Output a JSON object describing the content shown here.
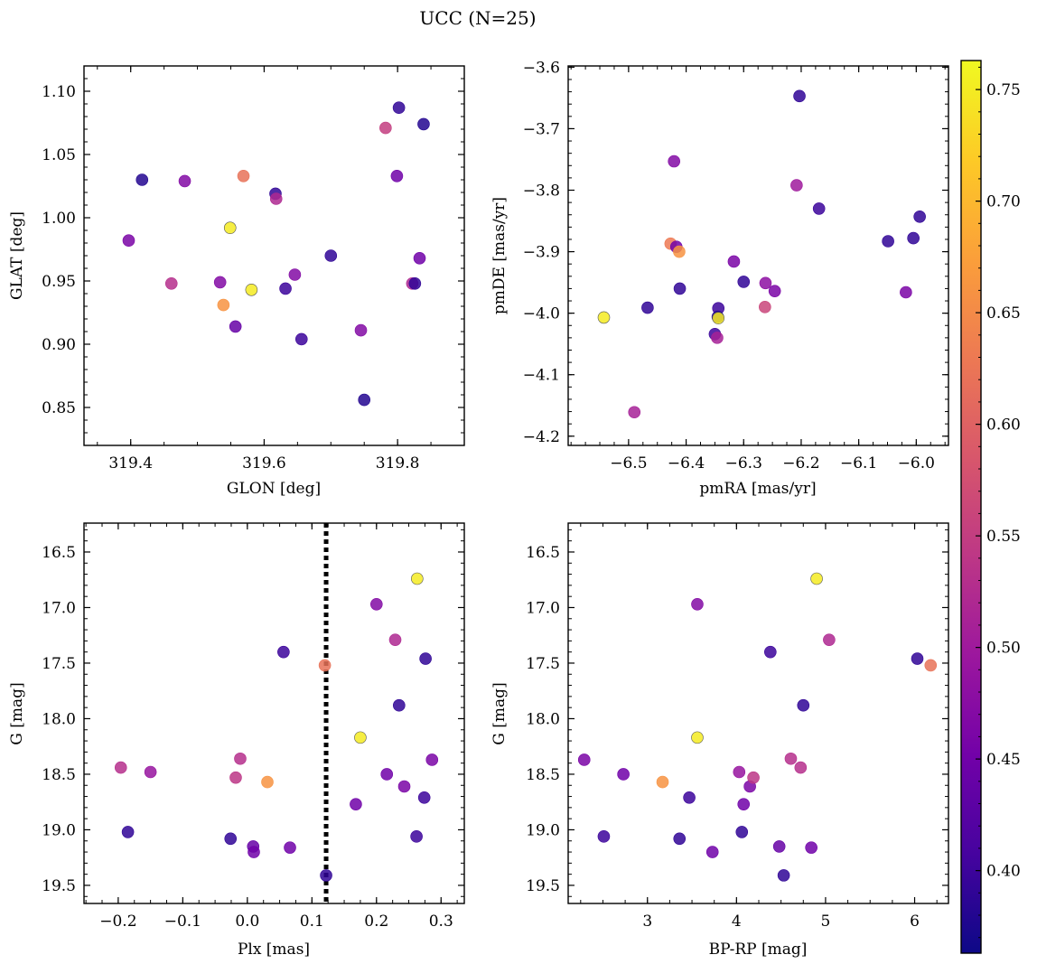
{
  "title": "UCC (N=25)",
  "colorbar": {
    "range": [
      0.363,
      0.763
    ],
    "ticks": [
      "0.40",
      "0.45",
      "0.50",
      "0.55",
      "0.60",
      "0.65",
      "0.70",
      "0.75"
    ],
    "tick_values": [
      0.4,
      0.45,
      0.5,
      0.55,
      0.6,
      0.65,
      0.7,
      0.75
    ],
    "cmap": [
      "#0d0887",
      "#46039f",
      "#7201a8",
      "#9c179e",
      "#bd3786",
      "#d8576b",
      "#ed7953",
      "#fb9f3a",
      "#fdca26",
      "#f0f921"
    ]
  },
  "chart_data": [
    {
      "type": "scatter",
      "name": "glon-glat",
      "xlabel": "GLON [deg]",
      "ylabel": "GLAT [deg]",
      "xlim": [
        319.33,
        319.9
      ],
      "ylim": [
        0.82,
        1.12
      ],
      "xticks": [
        319.4,
        319.6,
        319.8
      ],
      "xtick_labels": [
        "319.4",
        "319.6",
        "319.8"
      ],
      "yticks": [
        0.85,
        0.9,
        0.95,
        1.0,
        1.05,
        1.1
      ],
      "ytick_labels": [
        "0.85",
        "0.90",
        "0.95",
        "1.00",
        "1.05",
        "1.10"
      ],
      "points": [
        {
          "x": 319.397,
          "y": 0.982,
          "c": 0.46
        },
        {
          "x": 319.417,
          "y": 1.03,
          "c": 0.38
        },
        {
          "x": 319.461,
          "y": 0.948,
          "c": 0.53
        },
        {
          "x": 319.481,
          "y": 1.029,
          "c": 0.47
        },
        {
          "x": 319.534,
          "y": 0.949,
          "c": 0.47
        },
        {
          "x": 319.539,
          "y": 0.931,
          "c": 0.66
        },
        {
          "x": 319.549,
          "y": 0.992,
          "c": 0.75
        },
        {
          "x": 319.557,
          "y": 0.914,
          "c": 0.44
        },
        {
          "x": 319.569,
          "y": 1.033,
          "c": 0.62
        },
        {
          "x": 319.581,
          "y": 0.943,
          "c": 0.75
        },
        {
          "x": 319.617,
          "y": 1.019,
          "c": 0.39
        },
        {
          "x": 319.618,
          "y": 1.015,
          "c": 0.52
        },
        {
          "x": 319.632,
          "y": 0.944,
          "c": 0.4
        },
        {
          "x": 319.646,
          "y": 0.955,
          "c": 0.47
        },
        {
          "x": 319.656,
          "y": 0.904,
          "c": 0.4
        },
        {
          "x": 319.7,
          "y": 0.97,
          "c": 0.39
        },
        {
          "x": 319.745,
          "y": 0.911,
          "c": 0.47
        },
        {
          "x": 319.75,
          "y": 0.856,
          "c": 0.38
        },
        {
          "x": 319.782,
          "y": 1.071,
          "c": 0.55
        },
        {
          "x": 319.799,
          "y": 1.033,
          "c": 0.45
        },
        {
          "x": 319.802,
          "y": 1.087,
          "c": 0.39
        },
        {
          "x": 319.822,
          "y": 0.948,
          "c": 0.52
        },
        {
          "x": 319.826,
          "y": 0.948,
          "c": 0.39
        },
        {
          "x": 319.833,
          "y": 0.968,
          "c": 0.45
        },
        {
          "x": 319.839,
          "y": 1.074,
          "c": 0.38
        }
      ]
    },
    {
      "type": "scatter",
      "name": "pmra-pmde",
      "xlabel": "pmRA [mas/yr]",
      "ylabel": "pmDE [mas/yr]",
      "xlim": [
        -6.605,
        -5.944
      ],
      "ylim": [
        -4.215,
        -3.598
      ],
      "xticks": [
        -6.5,
        -6.4,
        -6.3,
        -6.2,
        -6.1,
        -6.0
      ],
      "xtick_labels": [
        "−6.5",
        "−6.4",
        "−6.3",
        "−6.2",
        "−6.1",
        "−6.0"
      ],
      "yticks": [
        -4.2,
        -4.1,
        -4.0,
        -3.9,
        -3.8,
        -3.7,
        -3.6
      ],
      "ytick_labels": [
        "−4.2",
        "−4.1",
        "−4.0",
        "−3.9",
        "−3.8",
        "−3.7",
        "−3.6"
      ],
      "points": [
        {
          "x": -6.543,
          "y": -4.007,
          "c": 0.75
        },
        {
          "x": -6.49,
          "y": -4.161,
          "c": 0.51
        },
        {
          "x": -6.467,
          "y": -3.991,
          "c": 0.39
        },
        {
          "x": -6.421,
          "y": -3.753,
          "c": 0.47
        },
        {
          "x": -6.427,
          "y": -3.887,
          "c": 0.63
        },
        {
          "x": -6.417,
          "y": -3.892,
          "c": 0.45
        },
        {
          "x": -6.412,
          "y": -3.9,
          "c": 0.66
        },
        {
          "x": -6.411,
          "y": -3.96,
          "c": 0.39
        },
        {
          "x": -6.35,
          "y": -4.034,
          "c": 0.4
        },
        {
          "x": -6.346,
          "y": -4.04,
          "c": 0.51
        },
        {
          "x": -6.344,
          "y": -3.992,
          "c": 0.4
        },
        {
          "x": -6.345,
          "y": -4.006,
          "c": 0.38
        },
        {
          "x": -6.344,
          "y": -4.008,
          "c": 0.75
        },
        {
          "x": -6.317,
          "y": -3.916,
          "c": 0.46
        },
        {
          "x": -6.3,
          "y": -3.949,
          "c": 0.39
        },
        {
          "x": -6.262,
          "y": -3.951,
          "c": 0.48
        },
        {
          "x": -6.263,
          "y": -3.99,
          "c": 0.56
        },
        {
          "x": -6.246,
          "y": -3.964,
          "c": 0.46
        },
        {
          "x": -6.208,
          "y": -3.792,
          "c": 0.5
        },
        {
          "x": -6.203,
          "y": -3.647,
          "c": 0.39
        },
        {
          "x": -6.169,
          "y": -3.83,
          "c": 0.4
        },
        {
          "x": -6.049,
          "y": -3.883,
          "c": 0.39
        },
        {
          "x": -6.018,
          "y": -3.966,
          "c": 0.46
        },
        {
          "x": -6.005,
          "y": -3.878,
          "c": 0.39
        },
        {
          "x": -5.994,
          "y": -3.843,
          "c": 0.39
        }
      ]
    },
    {
      "type": "scatter",
      "name": "plx-g",
      "xlabel": "Plx [mas]",
      "ylabel": "G [mag]",
      "xlim": [
        -0.253,
        0.336
      ],
      "ylim": [
        19.663,
        16.24
      ],
      "xticks": [
        -0.2,
        -0.1,
        0.0,
        0.1,
        0.2,
        0.3
      ],
      "xtick_labels": [
        "−0.2",
        "−0.1",
        "0.0",
        "0.1",
        "0.2",
        "0.3"
      ],
      "yticks": [
        16.5,
        17.0,
        17.5,
        18.0,
        18.5,
        19.0,
        19.5
      ],
      "ytick_labels": [
        "16.5",
        "17.0",
        "17.5",
        "18.0",
        "18.5",
        "19.0",
        "19.5"
      ],
      "vline": {
        "x": 0.122,
        "style": "dotted"
      },
      "points": [
        {
          "x": -0.196,
          "y": 18.44,
          "c": 0.53
        },
        {
          "x": -0.185,
          "y": 19.02,
          "c": 0.39
        },
        {
          "x": -0.15,
          "y": 18.48,
          "c": 0.49
        },
        {
          "x": -0.026,
          "y": 19.08,
          "c": 0.39
        },
        {
          "x": -0.018,
          "y": 18.53,
          "c": 0.54
        },
        {
          "x": -0.011,
          "y": 18.36,
          "c": 0.53
        },
        {
          "x": 0.009,
          "y": 19.15,
          "c": 0.44
        },
        {
          "x": 0.01,
          "y": 19.2,
          "c": 0.45
        },
        {
          "x": 0.031,
          "y": 18.57,
          "c": 0.66
        },
        {
          "x": 0.056,
          "y": 17.4,
          "c": 0.4
        },
        {
          "x": 0.066,
          "y": 19.16,
          "c": 0.45
        },
        {
          "x": 0.12,
          "y": 17.52,
          "c": 0.62
        },
        {
          "x": 0.122,
          "y": 19.41,
          "c": 0.39
        },
        {
          "x": 0.168,
          "y": 18.77,
          "c": 0.45
        },
        {
          "x": 0.175,
          "y": 18.17,
          "c": 0.75
        },
        {
          "x": 0.2,
          "y": 16.97,
          "c": 0.47
        },
        {
          "x": 0.216,
          "y": 18.5,
          "c": 0.45
        },
        {
          "x": 0.229,
          "y": 17.29,
          "c": 0.52
        },
        {
          "x": 0.235,
          "y": 17.88,
          "c": 0.39
        },
        {
          "x": 0.243,
          "y": 18.61,
          "c": 0.46
        },
        {
          "x": 0.262,
          "y": 19.06,
          "c": 0.4
        },
        {
          "x": 0.263,
          "y": 16.74,
          "c": 0.75
        },
        {
          "x": 0.274,
          "y": 18.71,
          "c": 0.4
        },
        {
          "x": 0.276,
          "y": 17.46,
          "c": 0.39
        },
        {
          "x": 0.286,
          "y": 18.37,
          "c": 0.46
        }
      ]
    },
    {
      "type": "scatter",
      "name": "bprp-g",
      "xlabel": "BP-RP [mag]",
      "ylabel": "G [mag]",
      "xlim": [
        2.11,
        6.38
      ],
      "ylim": [
        19.663,
        16.24
      ],
      "xticks": [
        3,
        4,
        5,
        6
      ],
      "xtick_labels": [
        "3",
        "4",
        "5",
        "6"
      ],
      "yticks": [
        16.5,
        17.0,
        17.5,
        18.0,
        18.5,
        19.0,
        19.5
      ],
      "ytick_labels": [
        "16.5",
        "17.0",
        "17.5",
        "18.0",
        "18.5",
        "19.0",
        "19.5"
      ],
      "points": [
        {
          "x": 2.29,
          "y": 18.37,
          "c": 0.46
        },
        {
          "x": 2.51,
          "y": 19.06,
          "c": 0.4
        },
        {
          "x": 2.73,
          "y": 18.5,
          "c": 0.45
        },
        {
          "x": 3.17,
          "y": 18.57,
          "c": 0.66
        },
        {
          "x": 3.36,
          "y": 19.08,
          "c": 0.39
        },
        {
          "x": 3.47,
          "y": 18.71,
          "c": 0.4
        },
        {
          "x": 3.56,
          "y": 16.97,
          "c": 0.47
        },
        {
          "x": 3.56,
          "y": 18.17,
          "c": 0.75
        },
        {
          "x": 3.73,
          "y": 19.2,
          "c": 0.45
        },
        {
          "x": 4.03,
          "y": 18.48,
          "c": 0.49
        },
        {
          "x": 4.06,
          "y": 19.02,
          "c": 0.39
        },
        {
          "x": 4.08,
          "y": 18.77,
          "c": 0.45
        },
        {
          "x": 4.15,
          "y": 18.61,
          "c": 0.46
        },
        {
          "x": 4.19,
          "y": 18.53,
          "c": 0.54
        },
        {
          "x": 4.38,
          "y": 17.4,
          "c": 0.4
        },
        {
          "x": 4.48,
          "y": 19.15,
          "c": 0.44
        },
        {
          "x": 4.53,
          "y": 19.41,
          "c": 0.39
        },
        {
          "x": 4.61,
          "y": 18.36,
          "c": 0.53
        },
        {
          "x": 4.72,
          "y": 18.44,
          "c": 0.53
        },
        {
          "x": 4.75,
          "y": 17.88,
          "c": 0.39
        },
        {
          "x": 4.84,
          "y": 19.16,
          "c": 0.45
        },
        {
          "x": 4.9,
          "y": 16.74,
          "c": 0.75
        },
        {
          "x": 5.04,
          "y": 17.29,
          "c": 0.52
        },
        {
          "x": 6.03,
          "y": 17.46,
          "c": 0.39
        },
        {
          "x": 6.18,
          "y": 17.52,
          "c": 0.62
        }
      ]
    }
  ]
}
